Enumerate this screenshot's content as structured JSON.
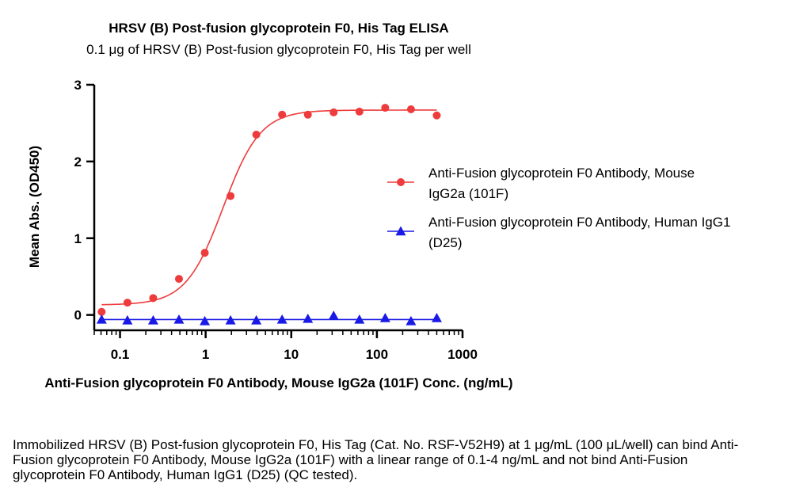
{
  "chart_data": {
    "type": "scatter",
    "title": "HRSV (B) Post-fusion glycoprotein F0, His Tag ELISA",
    "subtitle": "0.1 μg of HRSV (B) Post-fusion glycoprotein F0, His Tag per well",
    "xlabel": "Anti-Fusion glycoprotein F0 Antibody, Mouse IgG2a (101F) Conc. (ng/mL)",
    "ylabel": "Mean Abs. (OD450)",
    "x_scale": "log",
    "xlim": [
      0.05,
      1000
    ],
    "ylim": [
      -0.2,
      3
    ],
    "x_ticks": [
      0.1,
      1,
      10,
      100,
      1000
    ],
    "x_tick_labels": [
      "0.1",
      "1",
      "10",
      "100",
      "1000"
    ],
    "y_ticks": [
      0,
      1,
      2,
      3
    ],
    "y_tick_labels": [
      "0",
      "1",
      "2",
      "3"
    ],
    "grid": false,
    "legend_position": "right",
    "series": [
      {
        "name_lines": [
          "Anti-Fusion glycoprotein F0 Antibody, Mouse",
          "IgG2a (101F)"
        ],
        "color": "#ee3b3b",
        "marker": "circle",
        "fit": "4PL",
        "x": [
          0.061,
          0.122,
          0.244,
          0.488,
          0.977,
          1.953,
          3.906,
          7.813,
          15.625,
          31.25,
          62.5,
          125,
          250,
          500
        ],
        "y": [
          0.04,
          0.16,
          0.22,
          0.47,
          0.81,
          1.55,
          2.35,
          2.61,
          2.61,
          2.64,
          2.65,
          2.7,
          2.68,
          2.6
        ],
        "fit_params": {
          "bottom": 0.13,
          "top": 2.67,
          "ec50": 1.6,
          "hill": 2.0
        }
      },
      {
        "name_lines": [
          "Anti-Fusion glycoprotein F0 Antibody, Human IgG1",
          "(D25)"
        ],
        "color": "#1a1ae6",
        "marker": "triangle",
        "fit": "linear",
        "x": [
          0.061,
          0.122,
          0.244,
          0.488,
          0.977,
          1.953,
          3.906,
          7.813,
          15.625,
          31.25,
          62.5,
          125,
          250,
          500
        ],
        "y": [
          -0.06,
          -0.07,
          -0.07,
          -0.06,
          -0.08,
          -0.07,
          -0.07,
          -0.06,
          -0.05,
          -0.01,
          -0.06,
          -0.04,
          -0.08,
          -0.04
        ],
        "fit_params": {
          "level": -0.06
        }
      }
    ]
  },
  "caption": "Immobilized HRSV (B) Post-fusion glycoprotein F0, His Tag (Cat. No. RSF-V52H9) at 1 μg/mL (100 μL/well) can bind Anti-Fusion glycoprotein F0 Antibody, Mouse IgG2a (101F) with a linear range of 0.1-4 ng/mL and not bind Anti-Fusion glycoprotein F0 Antibody, Human IgG1 (D25) (QC tested)."
}
